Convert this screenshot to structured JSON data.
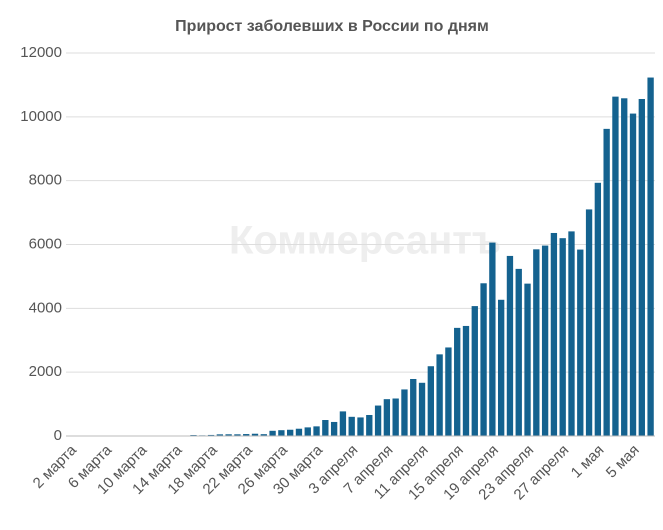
{
  "chart_data": {
    "type": "bar",
    "title": "Прирост заболевших в России по дням",
    "watermark": "Коммерсантъ",
    "categories": [
      "2 марта",
      null,
      null,
      null,
      "6 марта",
      null,
      null,
      null,
      "10 марта",
      null,
      null,
      null,
      "14 марта",
      null,
      null,
      null,
      "18 марта",
      null,
      null,
      null,
      "22 марта",
      null,
      null,
      null,
      "26 марта",
      null,
      null,
      null,
      "30 марта",
      null,
      null,
      null,
      "3 апреля",
      null,
      null,
      null,
      "7 апреля",
      null,
      null,
      null,
      "11 апреля",
      null,
      null,
      null,
      "15 апреля",
      null,
      null,
      null,
      "19 апреля",
      null,
      null,
      null,
      "23 апреля",
      null,
      null,
      null,
      "27 апреля",
      null,
      null,
      null,
      "1 мая",
      null,
      null,
      null,
      "5 мая",
      null,
      null
    ],
    "values": [
      0,
      0,
      0,
      1,
      6,
      1,
      3,
      0,
      7,
      2,
      14,
      6,
      14,
      4,
      30,
      21,
      33,
      52,
      54,
      53,
      61,
      71,
      57,
      163,
      182,
      196,
      228,
      270,
      302,
      501,
      440,
      771,
      601,
      582,
      658,
      954,
      1154,
      1175,
      1459,
      1786,
      1667,
      2186,
      2558,
      2774,
      3388,
      3448,
      4070,
      4785,
      6060,
      4268,
      5642,
      5236,
      4774,
      5849,
      5966,
      6361,
      6198,
      6411,
      5841,
      7099,
      7933,
      9623,
      10633,
      10581,
      10102,
      10559,
      11231
    ],
    "color": "#14628f",
    "ylim": [
      0,
      12000
    ],
    "yticks": [
      0,
      2000,
      4000,
      6000,
      8000,
      10000,
      12000
    ],
    "grid": true
  }
}
